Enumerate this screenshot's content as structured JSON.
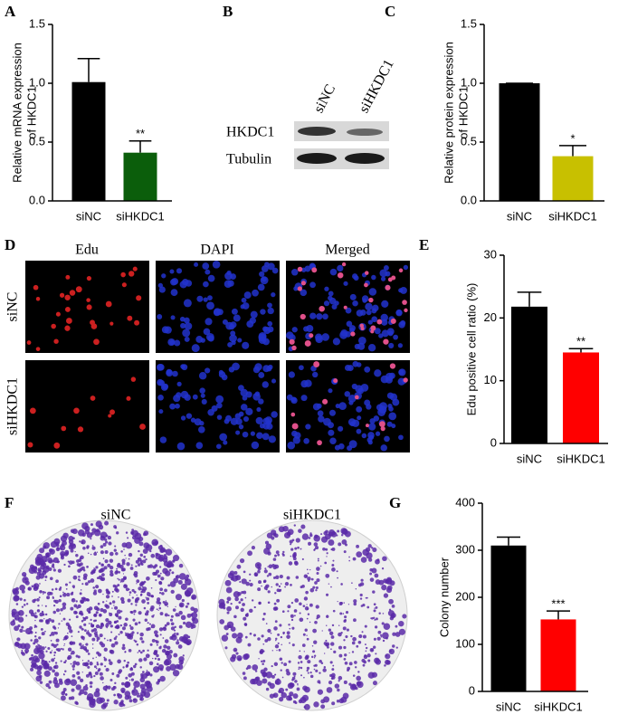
{
  "chart_data": [
    {
      "type": "bar",
      "panel": "A",
      "ylabel": [
        "Relative mRNA expression",
        "of HKDC1"
      ],
      "categories": [
        "siNC",
        "siHKDC1"
      ],
      "values": [
        1.01,
        0.41
      ],
      "errors": [
        0.2,
        0.1
      ],
      "colors": [
        "#000000",
        "#0b5e0b"
      ],
      "annotations": [
        null,
        "**"
      ],
      "ylim": [
        0,
        1.5
      ],
      "yticks": [
        {
          "value": 0,
          "label": "0.0"
        },
        {
          "value": 0.5,
          "label": "0.5"
        },
        {
          "value": 1,
          "label": "1.0"
        },
        {
          "value": 1.5,
          "label": "1.5"
        }
      ]
    },
    {
      "type": "bar",
      "panel": "C",
      "ylabel": [
        "Relative protein expression",
        "of HKDC1"
      ],
      "categories": [
        "siNC",
        "siHKDC1"
      ],
      "values": [
        1.0,
        0.38
      ],
      "errors": [
        0,
        0.09
      ],
      "colors": [
        "#000000",
        "#c8c000"
      ],
      "annotations": [
        null,
        "*"
      ],
      "ylim": [
        0,
        1.5
      ],
      "yticks": [
        {
          "value": 0,
          "label": "0.0"
        },
        {
          "value": 0.5,
          "label": "0.5"
        },
        {
          "value": 1,
          "label": "1.0"
        },
        {
          "value": 1.5,
          "label": "1.5"
        }
      ]
    },
    {
      "type": "bar",
      "panel": "E",
      "ylabel": [
        "Edu positive cell ratio (%)"
      ],
      "categories": [
        "siNC",
        "siHKDC1"
      ],
      "values": [
        21.8,
        14.5
      ],
      "errors": [
        2.3,
        0.6
      ],
      "colors": [
        "#000000",
        "#ff0000"
      ],
      "annotations": [
        null,
        "**"
      ],
      "ylim": [
        0,
        30
      ],
      "yticks": [
        0,
        10,
        20,
        30
      ]
    },
    {
      "type": "bar",
      "panel": "G",
      "ylabel": [
        "Colony number"
      ],
      "categories": [
        "siNC",
        "siHKDC1"
      ],
      "values": [
        310,
        153
      ],
      "errors": [
        18,
        18
      ],
      "colors": [
        "#000000",
        "#ff0000"
      ],
      "annotations": [
        null,
        "***"
      ],
      "ylim": [
        0,
        400
      ],
      "yticks": [
        0,
        100,
        200,
        300,
        400
      ]
    }
  ],
  "blot": {
    "panel": "B",
    "lanes": [
      "siNC",
      "siHKDC1"
    ],
    "rows": [
      "HKDC1",
      "Tubulin"
    ]
  },
  "images": {
    "panel": "D",
    "columns": [
      "Edu",
      "DAPI",
      "Merged"
    ],
    "rows": [
      "siNC",
      "siHKDC1"
    ]
  },
  "plates": {
    "panel": "F",
    "labels": [
      "siNC",
      "siHKDC1"
    ]
  }
}
